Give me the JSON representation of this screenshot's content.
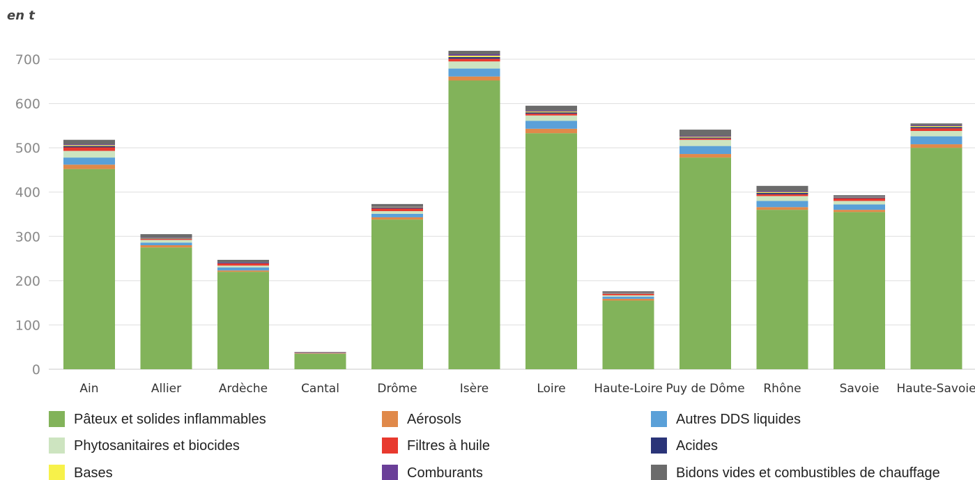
{
  "chart_data": {
    "type": "bar",
    "stacked": true,
    "unit_label": "en t",
    "categories": [
      "Ain",
      "Allier",
      "Ardèche",
      "Cantal",
      "Drôme",
      "Isère",
      "Loire",
      "Haute-Loire",
      "Puy de Dôme",
      "Rhône",
      "Savoie",
      "Haute-Savoie"
    ],
    "ylim": [
      0,
      700
    ],
    "yticks": [
      0,
      100,
      200,
      300,
      400,
      500,
      600,
      700
    ],
    "grid": true,
    "legend_position": "bottom",
    "series": [
      {
        "name": "Pâteux et solides inflammables",
        "color": "#82b35a",
        "values": [
          452,
          275,
          220,
          35,
          338,
          652,
          533,
          155,
          478,
          360,
          355,
          500
        ]
      },
      {
        "name": "Aérosols",
        "color": "#e0894a",
        "values": [
          10,
          5,
          3,
          1,
          5,
          9,
          10,
          4,
          8,
          6,
          5,
          8
        ]
      },
      {
        "name": "Autres DDS liquides",
        "color": "#5aa0d8",
        "values": [
          16,
          6,
          7,
          1,
          8,
          18,
          18,
          5,
          18,
          14,
          12,
          18
        ]
      },
      {
        "name": "Phytosanitaires et biocides",
        "color": "#cde4c0",
        "values": [
          15,
          6,
          4,
          0,
          6,
          16,
          12,
          3,
          14,
          11,
          8,
          12
        ]
      },
      {
        "name": "Filtres à huile",
        "color": "#e8392e",
        "values": [
          8,
          2,
          5,
          1,
          6,
          6,
          4,
          3,
          3,
          4,
          6,
          6
        ]
      },
      {
        "name": "Acides",
        "color": "#2a3478",
        "values": [
          3,
          1,
          1,
          0,
          2,
          4,
          3,
          1,
          2,
          3,
          2,
          3
        ]
      },
      {
        "name": "Bases",
        "color": "#f7f14a",
        "values": [
          2,
          1,
          0,
          0,
          1,
          3,
          2,
          1,
          2,
          2,
          1,
          2
        ]
      },
      {
        "name": "Comburants",
        "color": "#6a3f98",
        "values": [
          2,
          1,
          1,
          0,
          1,
          3,
          2,
          1,
          2,
          2,
          1,
          2
        ]
      },
      {
        "name": "Bidons vides et combustibles de chauffage",
        "color": "#6b6b6b",
        "values": [
          10,
          8,
          6,
          1,
          6,
          8,
          11,
          3,
          14,
          12,
          3,
          4
        ]
      }
    ]
  }
}
